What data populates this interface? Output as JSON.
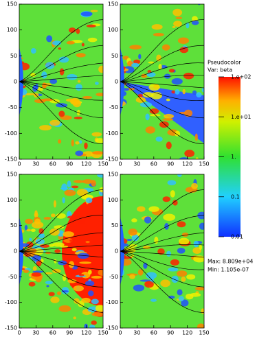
{
  "chart_data": [
    {
      "type": "heatmap",
      "xlim": [
        0,
        150
      ],
      "xticks": [
        0,
        30,
        60,
        90,
        120,
        150
      ],
      "ylim": [
        -150,
        150
      ],
      "yticks": [
        -150,
        -100,
        -50,
        0,
        50,
        100,
        150
      ]
    },
    {
      "type": "heatmap",
      "xlim": [
        0,
        150
      ],
      "xticks": [
        0,
        30,
        60,
        90,
        120,
        150
      ],
      "ylim": [
        -150,
        150
      ],
      "yticks": [
        -150,
        -100,
        -50,
        0,
        50,
        100,
        150
      ]
    },
    {
      "type": "heatmap",
      "xlim": [
        0,
        150
      ],
      "xticks": [
        0,
        30,
        60,
        90,
        120,
        150
      ],
      "ylim": [
        -150,
        150
      ],
      "yticks": [
        -150,
        -100,
        -50,
        0,
        50,
        100,
        150
      ]
    },
    {
      "type": "heatmap",
      "xlim": [
        0,
        150
      ],
      "xticks": [
        0,
        30,
        60,
        90,
        120,
        150
      ],
      "ylim": [
        -150,
        150
      ],
      "yticks": [
        -150,
        -100,
        -50,
        0,
        50,
        100,
        150
      ]
    }
  ],
  "colorbar": {
    "title": "Pseudocolor",
    "variable": "Var: beta",
    "log": true,
    "lim": [
      0.01,
      100
    ],
    "ticks": [
      {
        "value": 100,
        "label": "1.e+02"
      },
      {
        "value": 10,
        "label": "1.e+01"
      },
      {
        "value": 1,
        "label": "1."
      },
      0.1,
      0.01
    ],
    "max": "Max: 8.809e+04",
    "min": "Min: 1.105e-07"
  }
}
